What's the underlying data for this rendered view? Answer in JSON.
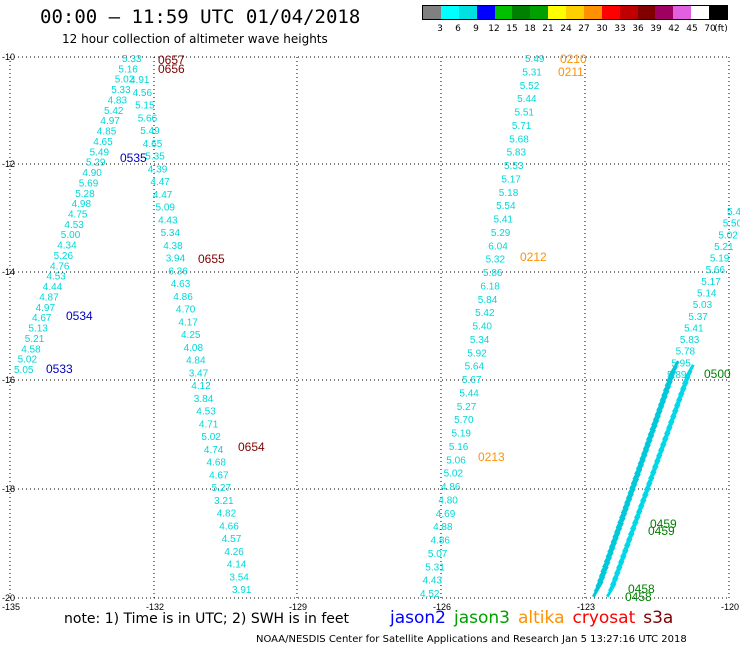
{
  "title": "00:00 — 11:59 UTC 01/04/2018",
  "subtitle": "12 hour collection of altimeter wave heights",
  "legend": {
    "colors": [
      "#808080",
      "#00ffff",
      "#00e0e0",
      "#0000ff",
      "#00c000",
      "#008000",
      "#00a000",
      "#ffff00",
      "#ffd000",
      "#ff9000",
      "#ff0000",
      "#c00000",
      "#800000",
      "#a00060",
      "#e060e0",
      "#ffffff",
      "#000000"
    ],
    "labels": [
      "3",
      "6",
      "9",
      "12",
      "15",
      "18",
      "21",
      "24",
      "27",
      "30",
      "33",
      "36",
      "39",
      "42",
      "45",
      "70",
      "(ft)"
    ]
  },
  "axes": {
    "x_ticks": [
      "-135",
      "-132",
      "-129",
      "-126",
      "-123",
      "-120"
    ],
    "y_ticks": [
      "-10",
      "-12",
      "-14",
      "-16",
      "-18",
      "-20"
    ]
  },
  "tracks": {
    "track1_values": [
      "5.33",
      "5.16",
      "5.02",
      "5.33",
      "4.83",
      "5.42",
      "4.97",
      "4.85",
      "4.65",
      "5.49",
      "5.29",
      "4.90",
      "5.69",
      "5.28",
      "4.98",
      "4.75",
      "4.53",
      "5.00",
      "4.34",
      "5.26",
      "4.76",
      "4.53",
      "4.44",
      "4.87",
      "4.97",
      "4.67",
      "5.13",
      "5.21",
      "4.58",
      "5.02",
      "5.05"
    ],
    "track2_values": [
      "4.91",
      "4.56",
      "5.15",
      "5.66",
      "5.49",
      "4.65",
      "5.35",
      "4.39",
      "4.47",
      "4.47",
      "5.09",
      "4.43",
      "5.34",
      "4.38",
      "3.94",
      "6.36",
      "4.63",
      "4.86",
      "4.70",
      "4.17",
      "4.25",
      "4.08",
      "4.84",
      "3.47",
      "4.12",
      "3.84",
      "4.53",
      "4.71",
      "5.02",
      "4.74",
      "4.68",
      "4.67",
      "5.27",
      "3.21",
      "4.82",
      "4.66",
      "4.57",
      "4.26",
      "4.14",
      "3.54",
      "3.91"
    ],
    "track3_values": [
      "5.49",
      "5.31",
      "5.52",
      "5.44",
      "5.51",
      "5.71",
      "5.68",
      "5.83",
      "5.53",
      "5.17",
      "5.18",
      "5.54",
      "5.41",
      "5.29",
      "6.04",
      "5.32",
      "5.86",
      "6.18",
      "5.84",
      "5.42",
      "5.40",
      "5.34",
      "5.92",
      "5.64",
      "5.67",
      "5.44",
      "5.27",
      "5.70",
      "5.19",
      "5.16",
      "5.06",
      "5.02",
      "4.86",
      "4.80",
      "4.69",
      "4.88",
      "4.86",
      "5.07",
      "5.31",
      "4.43",
      "4.52"
    ],
    "track4_values": [
      "5.4",
      "5.50",
      "5.02",
      "5.21",
      "5.19",
      "5.66",
      "5.17",
      "5.14",
      "5.03",
      "5.37",
      "5.41",
      "5.83",
      "5.78",
      "5.95",
      "5.89"
    ]
  },
  "time_labels": [
    {
      "text": "0657",
      "color": "#800000"
    },
    {
      "text": "0656",
      "color": "#800000"
    },
    {
      "text": "0535",
      "color": "#0000c0"
    },
    {
      "text": "0655",
      "color": "#800000"
    },
    {
      "text": "0534",
      "color": "#0000c0"
    },
    {
      "text": "0533",
      "color": "#0000c0"
    },
    {
      "text": "0654",
      "color": "#800000"
    },
    {
      "text": "0210",
      "color": "#ff9000"
    },
    {
      "text": "0211",
      "color": "#ff9000"
    },
    {
      "text": "0212",
      "color": "#ff9000"
    },
    {
      "text": "0213",
      "color": "#ff9000"
    },
    {
      "text": "0500",
      "color": "#008000"
    },
    {
      "text": "0459",
      "color": "#008000"
    },
    {
      "text": "0459",
      "color": "#008000"
    },
    {
      "text": "0458",
      "color": "#008000"
    },
    {
      "text": "0458",
      "color": "#008000"
    }
  ],
  "footer_note": "note: 1) Time is in UTC; 2) SWH is in feet",
  "satellites": [
    {
      "name": "jason2",
      "color": "#0000ff"
    },
    {
      "name": "jason3",
      "color": "#00a000"
    },
    {
      "name": "altika",
      "color": "#ff9000"
    },
    {
      "name": "cryosat",
      "color": "#ff0000"
    },
    {
      "name": "s3a",
      "color": "#800000"
    }
  ],
  "credit": "NOAA/NESDIS Center for Satellite Applications and Research    Jan  5 13:27:16 UTC 2018"
}
